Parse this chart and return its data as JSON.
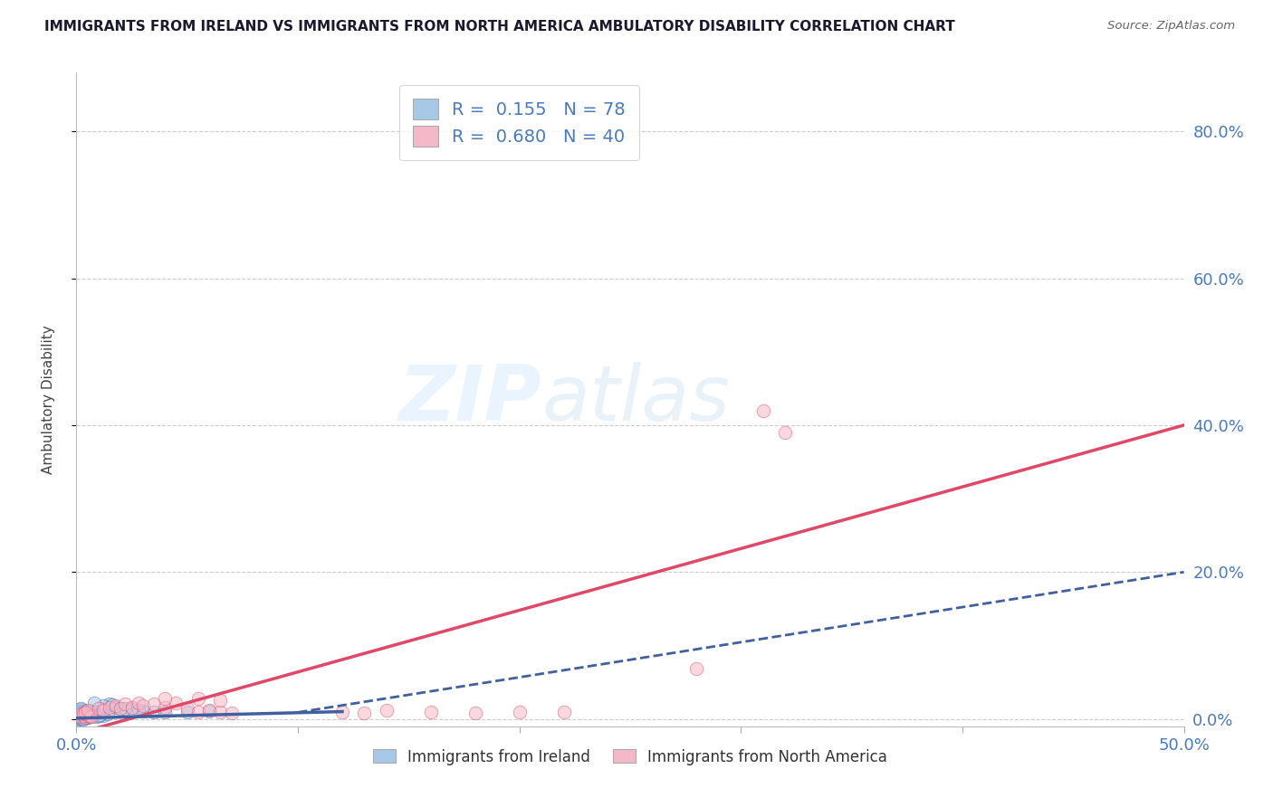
{
  "title": "IMMIGRANTS FROM IRELAND VS IMMIGRANTS FROM NORTH AMERICA AMBULATORY DISABILITY CORRELATION CHART",
  "source": "Source: ZipAtlas.com",
  "ylabel": "Ambulatory Disability",
  "xlim": [
    0.0,
    0.5
  ],
  "ylim": [
    -0.01,
    0.88
  ],
  "yticks": [
    0.0,
    0.2,
    0.4,
    0.6,
    0.8
  ],
  "ytick_labels_right": [
    "0.0%",
    "20.0%",
    "40.0%",
    "60.0%",
    "80.0%"
  ],
  "xtick_labels": [
    "0.0%",
    "",
    "",
    "",
    "",
    "50.0%"
  ],
  "blue_color": "#a8c8e8",
  "pink_color": "#f5b8c8",
  "blue_line_color": "#4060a0",
  "pink_line_color": "#e04868",
  "blue_scatter": [
    [
      0.001,
      0.002
    ],
    [
      0.002,
      0.005
    ],
    [
      0.001,
      0.008
    ],
    [
      0.003,
      0.003
    ],
    [
      0.002,
      0.01
    ],
    [
      0.004,
      0.004
    ],
    [
      0.001,
      0.006
    ],
    [
      0.003,
      0.007
    ],
    [
      0.002,
      0.002
    ],
    [
      0.001,
      0.004
    ],
    [
      0.003,
      0.001
    ],
    [
      0.002,
      0.009
    ],
    [
      0.004,
      0.005
    ],
    [
      0.001,
      0.003
    ],
    [
      0.003,
      0.012
    ],
    [
      0.002,
      0.007
    ],
    [
      0.004,
      0.002
    ],
    [
      0.001,
      0.001
    ],
    [
      0.003,
      0.006
    ],
    [
      0.002,
      0.003
    ],
    [
      0.005,
      0.004
    ],
    [
      0.001,
      0.011
    ],
    [
      0.004,
      0.008
    ],
    [
      0.002,
      0.013
    ],
    [
      0.003,
      0.004
    ],
    [
      0.001,
      0.002
    ],
    [
      0.003,
      0.009
    ],
    [
      0.002,
      0.006
    ],
    [
      0.004,
      0.003
    ],
    [
      0.001,
      0.007
    ],
    [
      0.002,
      0.004
    ],
    [
      0.003,
      0.002
    ],
    [
      0.001,
      0.0
    ],
    [
      0.002,
      0.001
    ],
    [
      0.003,
      0.0
    ],
    [
      0.001,
      0.005
    ],
    [
      0.005,
      0.002
    ],
    [
      0.004,
      0.006
    ],
    [
      0.002,
      0.008
    ],
    [
      0.003,
      0.01
    ],
    [
      0.006,
      0.005
    ],
    [
      0.004,
      0.003
    ],
    [
      0.002,
      0.011
    ],
    [
      0.003,
      0.007
    ],
    [
      0.007,
      0.004
    ],
    [
      0.005,
      0.006
    ],
    [
      0.002,
      0.014
    ],
    [
      0.004,
      0.009
    ],
    [
      0.006,
      0.003
    ],
    [
      0.003,
      0.005
    ],
    [
      0.008,
      0.006
    ],
    [
      0.005,
      0.007
    ],
    [
      0.01,
      0.004
    ],
    [
      0.007,
      0.008
    ],
    [
      0.012,
      0.005
    ],
    [
      0.009,
      0.003
    ],
    [
      0.006,
      0.01
    ],
    [
      0.004,
      0.007
    ],
    [
      0.011,
      0.006
    ],
    [
      0.008,
      0.009
    ],
    [
      0.014,
      0.007
    ],
    [
      0.01,
      0.005
    ],
    [
      0.007,
      0.011
    ],
    [
      0.005,
      0.008
    ],
    [
      0.015,
      0.02
    ],
    [
      0.012,
      0.018
    ],
    [
      0.018,
      0.016
    ],
    [
      0.02,
      0.015
    ],
    [
      0.025,
      0.013
    ],
    [
      0.03,
      0.011
    ],
    [
      0.035,
      0.01
    ],
    [
      0.04,
      0.009
    ],
    [
      0.05,
      0.01
    ],
    [
      0.06,
      0.011
    ],
    [
      0.008,
      0.022
    ],
    [
      0.016,
      0.019
    ],
    [
      0.022,
      0.014
    ],
    [
      0.028,
      0.012
    ]
  ],
  "pink_scatter": [
    [
      0.002,
      0.003
    ],
    [
      0.003,
      0.005
    ],
    [
      0.004,
      0.002
    ],
    [
      0.002,
      0.007
    ],
    [
      0.005,
      0.004
    ],
    [
      0.003,
      0.008
    ],
    [
      0.006,
      0.005
    ],
    [
      0.004,
      0.01
    ],
    [
      0.007,
      0.003
    ],
    [
      0.005,
      0.012
    ],
    [
      0.01,
      0.015
    ],
    [
      0.012,
      0.012
    ],
    [
      0.015,
      0.016
    ],
    [
      0.018,
      0.018
    ],
    [
      0.02,
      0.014
    ],
    [
      0.022,
      0.02
    ],
    [
      0.025,
      0.016
    ],
    [
      0.028,
      0.022
    ],
    [
      0.03,
      0.018
    ],
    [
      0.035,
      0.02
    ],
    [
      0.04,
      0.016
    ],
    [
      0.045,
      0.022
    ],
    [
      0.05,
      0.014
    ],
    [
      0.055,
      0.01
    ],
    [
      0.06,
      0.012
    ],
    [
      0.065,
      0.01
    ],
    [
      0.07,
      0.008
    ],
    [
      0.04,
      0.028
    ],
    [
      0.055,
      0.028
    ],
    [
      0.065,
      0.026
    ],
    [
      0.12,
      0.01
    ],
    [
      0.13,
      0.008
    ],
    [
      0.14,
      0.012
    ],
    [
      0.16,
      0.01
    ],
    [
      0.18,
      0.008
    ],
    [
      0.2,
      0.01
    ],
    [
      0.22,
      0.01
    ],
    [
      0.28,
      0.068
    ],
    [
      0.31,
      0.42
    ],
    [
      0.32,
      0.39
    ]
  ],
  "pink_line": [
    [
      0.0,
      -0.02
    ],
    [
      0.5,
      0.4
    ]
  ],
  "blue_solid_line": [
    [
      0.0,
      0.001
    ],
    [
      0.12,
      0.01
    ]
  ],
  "blue_dashed_line": [
    [
      0.1,
      0.009
    ],
    [
      0.5,
      0.2
    ]
  ],
  "watermark_zip": "ZIP",
  "watermark_atlas": "atlas",
  "legend_blue_label": "R =  0.155   N = 78",
  "legend_pink_label": "R =  0.680   N = 40",
  "bottom_legend_blue": "Immigrants from Ireland",
  "bottom_legend_pink": "Immigrants from North America"
}
